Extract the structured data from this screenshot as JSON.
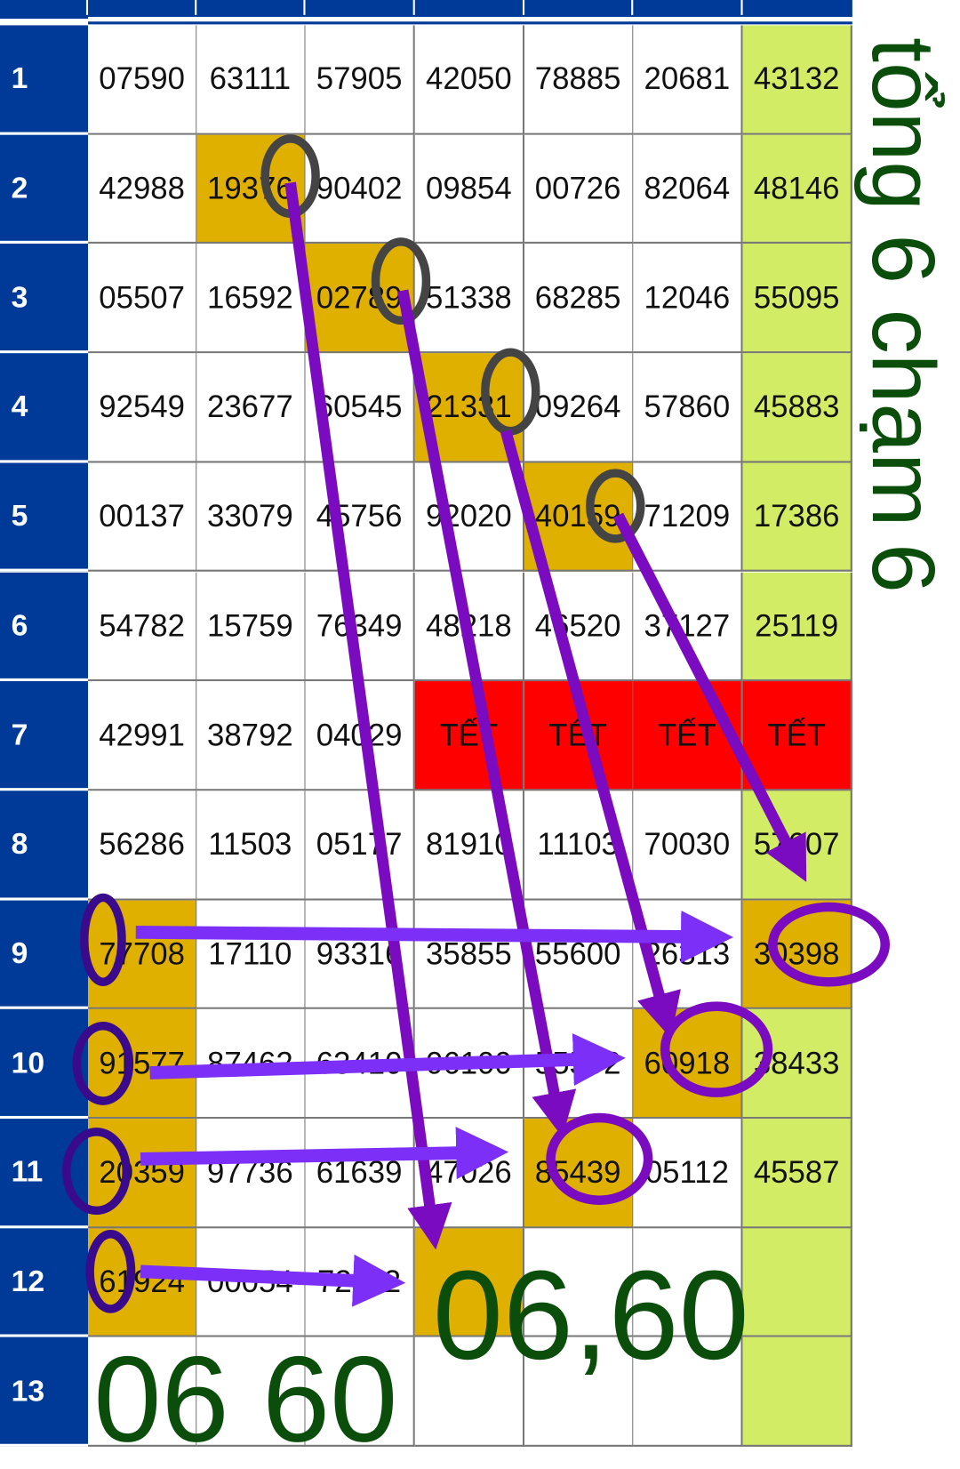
{
  "rows": [
    {
      "n": "1",
      "cells": [
        "07590",
        "63111",
        "57905",
        "42050",
        "78885",
        "20681",
        "43132"
      ]
    },
    {
      "n": "2",
      "cells": [
        "42988",
        "19376",
        "90402",
        "09854",
        "00726",
        "82064",
        "48146"
      ]
    },
    {
      "n": "3",
      "cells": [
        "05507",
        "16592",
        "02789",
        "51338",
        "68285",
        "12046",
        "55095"
      ]
    },
    {
      "n": "4",
      "cells": [
        "92549",
        "23677",
        "60545",
        "21331",
        "09264",
        "57860",
        "45883"
      ]
    },
    {
      "n": "5",
      "cells": [
        "00137",
        "33079",
        "45756",
        "92020",
        "40159",
        "71209",
        "17386"
      ]
    },
    {
      "n": "6",
      "cells": [
        "54782",
        "15759",
        "76349",
        "48218",
        "46520",
        "37127",
        "25119"
      ]
    },
    {
      "n": "7",
      "cells": [
        "42991",
        "38792",
        "04029",
        "TẾT",
        "TẾT",
        "TẾT",
        "TẾT"
      ]
    },
    {
      "n": "8",
      "cells": [
        "56286",
        "11503",
        "05177",
        "81910",
        "11103",
        "70030",
        "57607"
      ]
    },
    {
      "n": "9",
      "cells": [
        "77708",
        "17110",
        "93316",
        "35855",
        "55600",
        "26313",
        "30398"
      ]
    },
    {
      "n": "10",
      "cells": [
        "91577",
        "87462",
        "63410",
        "06100",
        "55592",
        "60918",
        "38433"
      ]
    },
    {
      "n": "11",
      "cells": [
        "20359",
        "97736",
        "61639",
        "47026",
        "85439",
        "05112",
        "45587"
      ]
    },
    {
      "n": "12",
      "cells": [
        "61924",
        "00054",
        "72112",
        "",
        "",
        "",
        ""
      ]
    },
    {
      "n": "13",
      "cells": [
        "",
        "",
        "",
        "",
        "",
        "",
        ""
      ]
    }
  ],
  "highlights": [
    [
      2,
      2
    ],
    [
      3,
      3
    ],
    [
      4,
      4
    ],
    [
      5,
      5
    ],
    [
      9,
      1
    ],
    [
      9,
      7
    ],
    [
      10,
      1
    ],
    [
      10,
      6
    ],
    [
      11,
      1
    ],
    [
      11,
      5
    ],
    [
      12,
      1
    ],
    [
      12,
      4
    ]
  ],
  "annotations": {
    "t1": "tổng",
    "t2": "6",
    "t3": "chạm",
    "t4": "6",
    "t5": "06",
    "t6": "60",
    "result": "06,60"
  },
  "colors": {
    "header": "#003a99",
    "highlight": "#e0b000",
    "tet": "#ff0000",
    "last_col": "#d2ec66",
    "annotation": "#0b4d0b",
    "arrow": "#7a0bc0"
  }
}
